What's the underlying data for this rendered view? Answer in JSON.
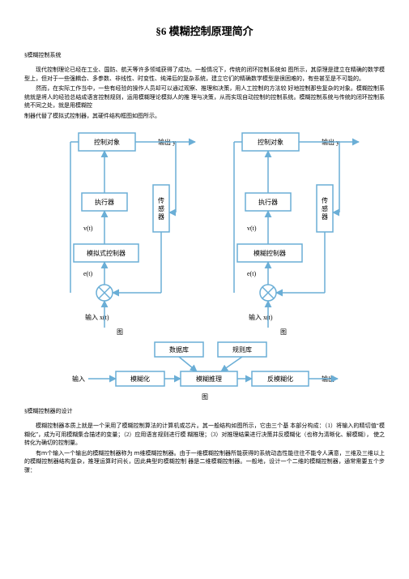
{
  "title": "§6 模糊控制原理简介",
  "s1_heading": "§模糊控制系统",
  "p1": "现代控制理论已经在工业、国防、航天等许多领域获得了成功。一般情况下，传统的闭环控制系统如 图所示，其原理是建立在精确的数学模型上，但对于一些强耦合、多参数、非线性、时变性、纯滞后的复杂系统，建立它们的精确数学模型是很困难的，有些甚至是不可能的。",
  "p2": "然而，在实际工作当中，一些有经验的操作人员却可以通过观察、推理和决策，用人工控制的方法较 好地控制那些复杂的对象。模糊控制系统就是将人的经验总结成语言控制规则，运用模糊理论模拟人的推 理与决策，从而实现自动控制的控制系统。模糊控制系统与传统的闭环控制系统不同之处，就是用模糊控",
  "p3": "制器代替了模拟式控制器，其硬件结构框图如图所示。",
  "s2_heading": "§模糊控制器的设计",
  "p4": "模糊控制器本质上就是一个采用了模糊控制算法的计算机或芯片。其一般结构如图所示，它由三个基 本部分构成：（1）将输入的精切值“模糊化”，成为可用模糊集合描述的变量；（2）应用语言规则进行模 糊推理；（3）对推理结果进行决策并反模糊化（也称为清晰化、解模糊），             使之转化为确切的控制量。",
  "p5": "有ｍ个输入一个输出的模糊控制器称为            ｍ维模糊控制器。由于一维模糊控制器所能获得的系统动态性能往往不能令人满意，三维及三维以上的模糊控制器结构复杂，推理运算时间长，因此典型的模糊控制 器是二维模糊控制器。一般地，设计一个二维的模糊控制器，通常需要五个步骤：",
  "d1": {
    "stroke": "#6aaed6",
    "fill_box": "#ffffff",
    "fill_sum": "#ffffff",
    "box_ctrl": "控制对象",
    "box_exec": "执行器",
    "box_sensor": "传\n感\n器",
    "box_sensor2": "传\n感\n器",
    "box_fuzzyctrl1": "模拟式控制器",
    "box_fuzzyctrl2": "模糊控制器",
    "lbl_out": "输出 y",
    "lbl_in": "输入  x(t)",
    "lbl_v": "v(t)",
    "lbl_e": "e(t)",
    "lbl_fig": "图"
  },
  "d2": {
    "stroke": "#6aaed6",
    "db": "数据库",
    "rb": "规则库",
    "fuz": "模糊化",
    "inf": "模糊推理",
    "def": "反模糊化",
    "in": "输入",
    "out": "输出",
    "fig": "图"
  }
}
